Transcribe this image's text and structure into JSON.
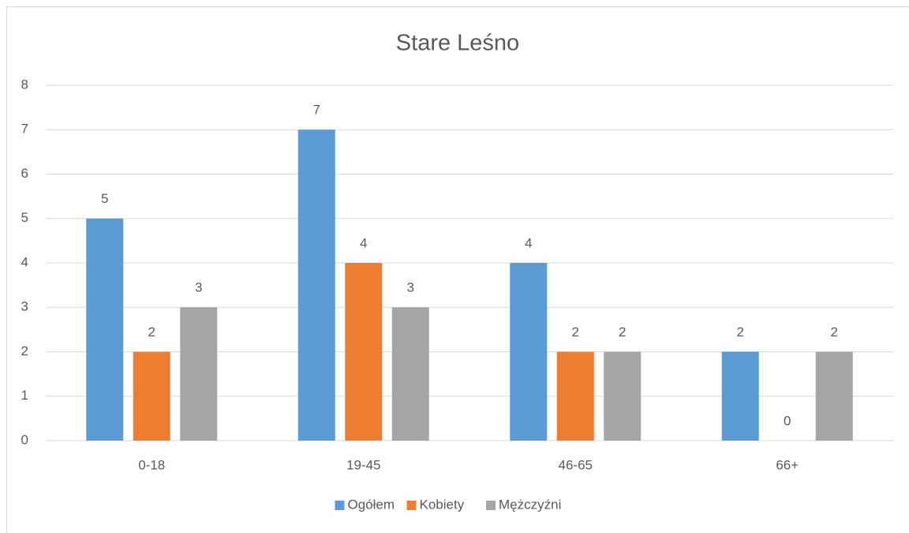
{
  "chart_data": {
    "type": "bar",
    "title": "Stare Leśno",
    "categories": [
      "0-18",
      "19-45",
      "46-65",
      "66+"
    ],
    "series": [
      {
        "name": "Ogółem",
        "color": "#5b9bd5",
        "values": [
          5,
          7,
          4,
          2
        ]
      },
      {
        "name": "Kobiety",
        "color": "#ed7d31",
        "values": [
          2,
          4,
          2,
          0
        ]
      },
      {
        "name": "Mężczyźni",
        "color": "#a5a5a5",
        "values": [
          3,
          3,
          2,
          2
        ]
      }
    ],
    "ylim": [
      0,
      8
    ],
    "yticks": [
      0,
      1,
      2,
      3,
      4,
      5,
      6,
      7,
      8
    ],
    "grid": true,
    "legend": "bottom"
  }
}
